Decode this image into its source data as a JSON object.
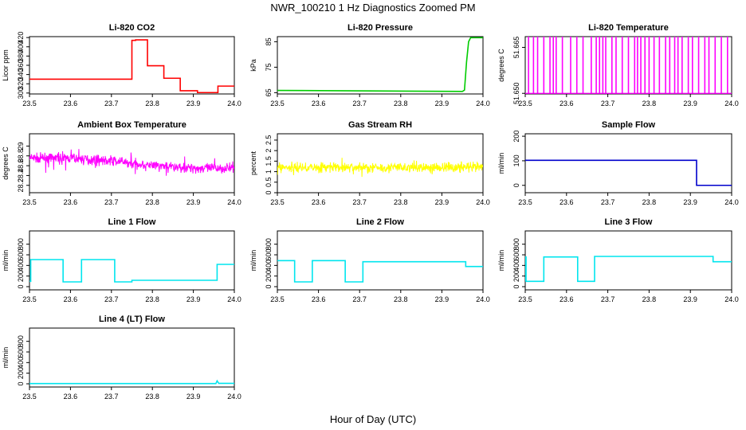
{
  "title": "NWR_100210  1 Hz Diagnostics Zoomed PM",
  "xlabel": "Hour of Day (UTC)",
  "chart_data": [
    {
      "type": "line",
      "title": "Li-820 CO2",
      "ylabel": "Licor ppm",
      "color": "#ff0000",
      "noise": 0,
      "xlim": [
        23.5,
        24.0
      ],
      "xticks": [
        23.5,
        23.6,
        23.7,
        23.8,
        23.9,
        24.0
      ],
      "ylim": [
        298,
        422
      ],
      "yticks": [
        300,
        320,
        340,
        360,
        380,
        400,
        420
      ],
      "x": [
        23.5,
        23.75,
        23.75,
        23.759,
        23.759,
        23.788,
        23.788,
        23.828,
        23.828,
        23.868,
        23.868,
        23.91,
        23.91,
        23.96,
        23.96,
        24.0
      ],
      "y": [
        330,
        330,
        414,
        414,
        415,
        415,
        359,
        359,
        332,
        332,
        305,
        305,
        301,
        301,
        315,
        315
      ]
    },
    {
      "type": "line",
      "title": "Li-820 Pressure",
      "ylabel": "kPa",
      "color": "#00cc00",
      "noise": 0,
      "xlim": [
        23.5,
        24.0
      ],
      "xticks": [
        23.5,
        23.6,
        23.7,
        23.8,
        23.9,
        24.0
      ],
      "ylim": [
        64.5,
        87
      ],
      "yticks": [
        65,
        75,
        85
      ],
      "x": [
        23.5,
        23.95,
        23.955,
        23.96,
        23.965,
        23.97,
        24.0
      ],
      "y": [
        65.9,
        65.5,
        66,
        77,
        85,
        86.6,
        86.6
      ]
    },
    {
      "type": "line",
      "title": "Li-820 Temperature",
      "ylabel": "degrees C",
      "color": "#ff00ff",
      "noise": 0,
      "xlim": [
        23.5,
        24.0
      ],
      "xticks": [
        23.5,
        23.6,
        23.7,
        23.8,
        23.9,
        24.0
      ],
      "ylim": [
        51.6498,
        51.6685
      ],
      "yticks": [
        51.65,
        51.665
      ],
      "ytick_labels": [
        "51.650",
        "51.665"
      ],
      "spikes": [
        23.508,
        23.52,
        23.53,
        23.545,
        23.56,
        23.568,
        23.575,
        23.59,
        23.61,
        23.625,
        23.64,
        23.66,
        23.672,
        23.68,
        23.688,
        23.695,
        23.71,
        23.72,
        23.735,
        23.75,
        23.765,
        23.772,
        23.78,
        23.79,
        23.8,
        23.812,
        23.825,
        23.84,
        23.85,
        23.862,
        23.87,
        23.88,
        23.895,
        23.905,
        23.92,
        23.935,
        23.945,
        23.96,
        23.975,
        23.99
      ],
      "baseline": 51.65,
      "top": 51.6685
    },
    {
      "type": "line",
      "title": "Ambient Box Temperature",
      "ylabel": "degrees C",
      "color": "#ff00ff",
      "noise": 1,
      "xlim": [
        23.5,
        24.0
      ],
      "xticks": [
        23.5,
        23.6,
        23.7,
        23.8,
        23.9,
        24.0
      ],
      "ylim": [
        28.05,
        29.25
      ],
      "yticks": [
        28.2,
        28.4,
        28.6,
        28.8,
        29.0
      ],
      "x": [
        23.5,
        23.6,
        23.7,
        23.8,
        23.9,
        24.0
      ],
      "y": [
        28.75,
        28.75,
        28.7,
        28.6,
        28.55,
        28.55
      ],
      "amp": 0.15
    },
    {
      "type": "line",
      "title": "Gas Stream RH",
      "ylabel": "percent",
      "color": "#ffff00",
      "noise": 1,
      "xlim": [
        23.5,
        24.0
      ],
      "xticks": [
        23.5,
        23.6,
        23.7,
        23.8,
        23.9,
        24.0
      ],
      "ylim": [
        0,
        2.8
      ],
      "yticks": [
        0.0,
        0.5,
        1.0,
        1.5,
        2.0,
        2.5
      ],
      "x": [
        23.5,
        24.0
      ],
      "y": [
        1.2,
        1.2
      ],
      "amp": 0.35
    },
    {
      "type": "line",
      "title": "Sample Flow",
      "ylabel": "ml/min",
      "color": "#0000cc",
      "noise": 0,
      "xlim": [
        23.5,
        24.0
      ],
      "xticks": [
        23.5,
        23.6,
        23.7,
        23.8,
        23.9,
        24.0
      ],
      "ylim": [
        -30,
        210
      ],
      "yticks": [
        0,
        100,
        200
      ],
      "x": [
        23.5,
        23.915,
        23.915,
        24.0
      ],
      "y": [
        102,
        102,
        0,
        0
      ]
    },
    {
      "type": "line",
      "title": "Line 1 Flow",
      "ylabel": "ml/min",
      "color": "#00e5ee",
      "noise": 0,
      "xlim": [
        23.5,
        24.0
      ],
      "xticks": [
        23.5,
        23.6,
        23.7,
        23.8,
        23.9,
        24.0
      ],
      "ylim": [
        -60,
        1050
      ],
      "yticks": [
        0,
        200,
        400,
        600,
        800
      ],
      "x": [
        23.5,
        23.503,
        23.503,
        23.582,
        23.582,
        23.627,
        23.627,
        23.708,
        23.708,
        23.75,
        23.75,
        23.958,
        23.958,
        24.0
      ],
      "y": [
        100,
        100,
        510,
        510,
        90,
        90,
        510,
        510,
        90,
        90,
        120,
        120,
        420,
        420
      ]
    },
    {
      "type": "line",
      "title": "Line 2 Flow",
      "ylabel": "ml/min",
      "color": "#00e5ee",
      "noise": 0,
      "xlim": [
        23.5,
        24.0
      ],
      "xticks": [
        23.5,
        23.6,
        23.7,
        23.8,
        23.9,
        24.0
      ],
      "ylim": [
        -60,
        1050
      ],
      "yticks": [
        0,
        200,
        400,
        600,
        800
      ],
      "x": [
        23.5,
        23.542,
        23.542,
        23.585,
        23.585,
        23.665,
        23.665,
        23.708,
        23.708,
        23.958,
        23.958,
        24.0
      ],
      "y": [
        490,
        490,
        90,
        90,
        490,
        490,
        90,
        90,
        470,
        470,
        380,
        380
      ]
    },
    {
      "type": "line",
      "title": "Line 3 Flow",
      "ylabel": "ml/min",
      "color": "#00e5ee",
      "noise": 0,
      "xlim": [
        23.5,
        24.0
      ],
      "xticks": [
        23.5,
        23.6,
        23.7,
        23.8,
        23.9,
        24.0
      ],
      "ylim": [
        -60,
        1050
      ],
      "yticks": [
        0,
        200,
        400,
        600,
        800
      ],
      "x": [
        23.5,
        23.5,
        23.502,
        23.502,
        23.545,
        23.545,
        23.627,
        23.627,
        23.668,
        23.668,
        23.955,
        23.955,
        24.0
      ],
      "y": [
        100,
        560,
        560,
        100,
        100,
        560,
        560,
        100,
        100,
        570,
        570,
        470,
        470
      ]
    },
    {
      "type": "line",
      "title": "Line 4 (LT) Flow",
      "ylabel": "ml/min",
      "color": "#00e5ee",
      "noise": 0,
      "xlim": [
        23.5,
        24.0
      ],
      "xticks": [
        23.5,
        23.6,
        23.7,
        23.8,
        23.9,
        24.0
      ],
      "ylim": [
        -60,
        1050
      ],
      "yticks": [
        0,
        200,
        400,
        600,
        800
      ],
      "x": [
        23.5,
        23.955,
        23.958,
        23.962,
        24.0
      ],
      "y": [
        5,
        5,
        55,
        8,
        8
      ]
    }
  ]
}
